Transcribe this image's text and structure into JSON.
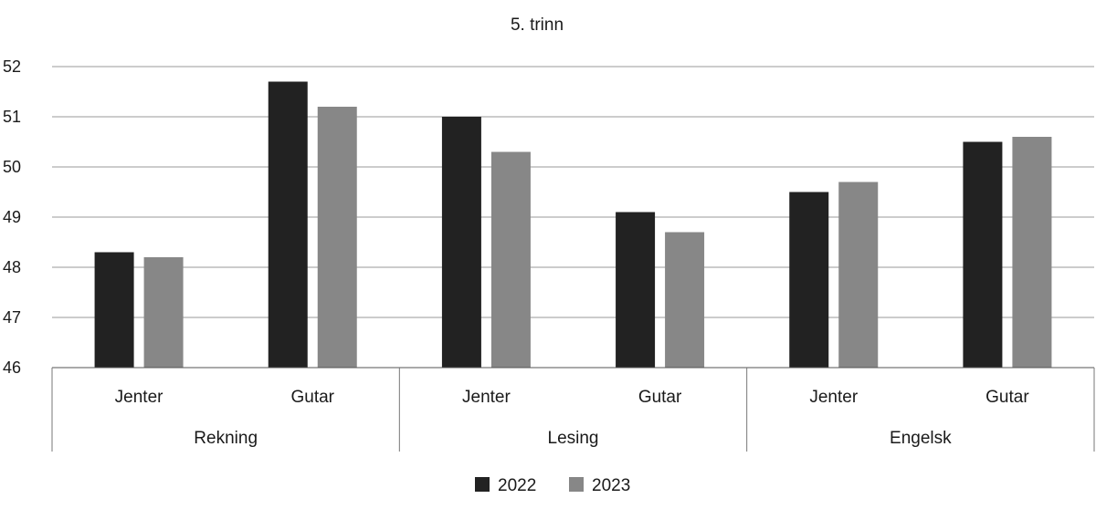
{
  "chart_data": {
    "type": "bar",
    "title": "5. trinn",
    "xlabel": "",
    "ylabel": "",
    "ylim": [
      46,
      52
    ],
    "yticks": [
      "46",
      "47",
      "48",
      "49",
      "50",
      "51",
      "52"
    ],
    "grid": true,
    "groups": [
      "Rekning",
      "Lesing",
      "Engelsk"
    ],
    "categories": [
      "Jenter",
      "Gutar",
      "Jenter",
      "Gutar",
      "Jenter",
      "Gutar"
    ],
    "series": [
      {
        "name": "2022",
        "color": "#222222",
        "values": [
          48.3,
          51.7,
          51.0,
          49.1,
          49.5,
          50.5
        ]
      },
      {
        "name": "2023",
        "color": "#878787",
        "values": [
          48.2,
          51.2,
          50.3,
          48.7,
          49.7,
          50.6
        ]
      }
    ],
    "legend_position": "bottom-center"
  }
}
